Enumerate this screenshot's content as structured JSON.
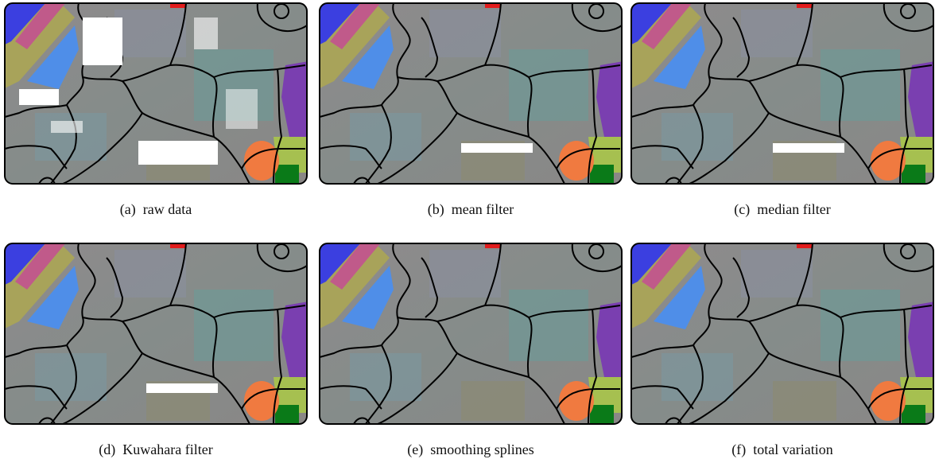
{
  "panels": [
    {
      "label": "(a)",
      "caption": "raw data"
    },
    {
      "label": "(b)",
      "caption": "mean filter"
    },
    {
      "label": "(c)",
      "caption": "median filter"
    },
    {
      "label": "(d)",
      "caption": "Kuwahara filter"
    },
    {
      "label": "(e)",
      "caption": "smoothing splines"
    },
    {
      "label": "(f)",
      "caption": "total variation"
    }
  ]
}
